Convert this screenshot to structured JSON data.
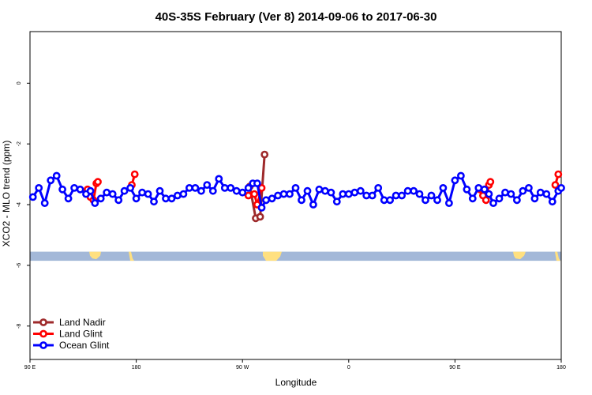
{
  "chart_data": {
    "type": "line",
    "title": "40S-35S February (Ver 8)   2014-09-06 to 2017-06-30",
    "xlabel": "Longitude",
    "ylabel": "XCO2 - MLO trend (ppm)",
    "xlim": [
      90,
      450
    ],
    "ylim": [
      -9.1,
      1.7
    ],
    "x_ticks": [
      {
        "value": 90,
        "label": "90 E"
      },
      {
        "value": 162,
        "label": "180"
      },
      {
        "value": 234,
        "label": "90 W"
      },
      {
        "value": 306,
        "label": "0"
      },
      {
        "value": 378,
        "label": "90 E"
      },
      {
        "value": 450,
        "label": "180"
      }
    ],
    "y_ticks": [
      {
        "value": 0,
        "label": "0"
      },
      {
        "value": -2,
        "label": "-2"
      },
      {
        "value": -4,
        "label": "-4"
      },
      {
        "value": -6,
        "label": "-6"
      },
      {
        "value": -8,
        "label": "-8"
      }
    ],
    "land_band": {
      "y_range": [
        -5.85,
        -5.55
      ],
      "ocean_color": "#a3b8d8",
      "land_color": "#ffe080"
    },
    "legend": {
      "position": "bottom-left"
    },
    "series": [
      {
        "name": "Land Nadir",
        "color": "#9e2a2b",
        "segments": [
          [
            [
              239,
              -3.4
            ],
            [
              243,
              -4.45
            ],
            [
              246,
              -4.4
            ],
            [
              249,
              -2.35
            ]
          ]
        ]
      },
      {
        "name": "Land Glint",
        "color": "#ff0000",
        "segments": [
          [
            [
              129,
              -3.5
            ],
            [
              131,
              -3.75
            ],
            [
              133,
              -3.85
            ],
            [
              135,
              -3.3
            ],
            [
              136,
              -3.25
            ]
          ],
          [
            [
              159,
              -3.35
            ],
            [
              161,
              -3.0
            ]
          ],
          [
            [
              238,
              -3.7
            ],
            [
              242,
              -3.65
            ],
            [
              244,
              -4.0
            ],
            [
              247,
              -3.45
            ]
          ],
          [
            [
              395,
              -3.5
            ],
            [
              397,
              -3.7
            ],
            [
              399,
              -3.85
            ],
            [
              401,
              -3.35
            ],
            [
              402,
              -3.25
            ]
          ],
          [
            [
              446,
              -3.35
            ],
            [
              448,
              -3.0
            ]
          ]
        ]
      },
      {
        "name": "Ocean Glint",
        "color": "#0000ff",
        "segments": [
          [
            [
              92,
              -3.75
            ],
            [
              96,
              -3.45
            ],
            [
              100,
              -3.95
            ],
            [
              104,
              -3.2
            ],
            [
              108,
              -3.05
            ],
            [
              112,
              -3.5
            ],
            [
              116,
              -3.8
            ],
            [
              120,
              -3.45
            ],
            [
              124,
              -3.5
            ],
            [
              128,
              -3.65
            ],
            [
              131,
              -3.55
            ],
            [
              134,
              -3.95
            ],
            [
              138,
              -3.8
            ],
            [
              142,
              -3.6
            ],
            [
              146,
              -3.65
            ],
            [
              150,
              -3.85
            ],
            [
              154,
              -3.55
            ],
            [
              158,
              -3.45
            ],
            [
              162,
              -3.8
            ],
            [
              166,
              -3.6
            ],
            [
              170,
              -3.65
            ],
            [
              174,
              -3.9
            ],
            [
              178,
              -3.55
            ],
            [
              182,
              -3.8
            ],
            [
              186,
              -3.8
            ],
            [
              190,
              -3.7
            ],
            [
              194,
              -3.65
            ],
            [
              198,
              -3.45
            ],
            [
              202,
              -3.45
            ],
            [
              206,
              -3.55
            ],
            [
              210,
              -3.35
            ],
            [
              214,
              -3.55
            ],
            [
              218,
              -3.15
            ],
            [
              222,
              -3.45
            ],
            [
              226,
              -3.45
            ],
            [
              230,
              -3.55
            ],
            [
              234,
              -3.6
            ],
            [
              238,
              -3.45
            ],
            [
              241,
              -3.3
            ],
            [
              244,
              -3.3
            ],
            [
              247,
              -4.1
            ],
            [
              250,
              -3.85
            ],
            [
              254,
              -3.8
            ],
            [
              258,
              -3.7
            ],
            [
              262,
              -3.65
            ],
            [
              266,
              -3.65
            ],
            [
              270,
              -3.45
            ],
            [
              274,
              -3.85
            ],
            [
              278,
              -3.55
            ],
            [
              282,
              -4.0
            ],
            [
              286,
              -3.5
            ],
            [
              290,
              -3.55
            ],
            [
              294,
              -3.6
            ],
            [
              298,
              -3.9
            ],
            [
              302,
              -3.65
            ],
            [
              306,
              -3.65
            ],
            [
              310,
              -3.6
            ],
            [
              314,
              -3.55
            ],
            [
              318,
              -3.7
            ],
            [
              322,
              -3.7
            ],
            [
              326,
              -3.45
            ],
            [
              330,
              -3.85
            ],
            [
              334,
              -3.85
            ],
            [
              338,
              -3.7
            ],
            [
              342,
              -3.7
            ],
            [
              346,
              -3.55
            ],
            [
              350,
              -3.55
            ],
            [
              354,
              -3.65
            ],
            [
              358,
              -3.85
            ],
            [
              362,
              -3.7
            ],
            [
              366,
              -3.85
            ],
            [
              370,
              -3.45
            ],
            [
              374,
              -3.95
            ],
            [
              378,
              -3.2
            ],
            [
              382,
              -3.05
            ],
            [
              386,
              -3.5
            ],
            [
              390,
              -3.8
            ],
            [
              394,
              -3.45
            ],
            [
              398,
              -3.5
            ],
            [
              401,
              -3.65
            ],
            [
              404,
              -3.95
            ],
            [
              408,
              -3.8
            ],
            [
              412,
              -3.6
            ],
            [
              416,
              -3.65
            ],
            [
              420,
              -3.85
            ],
            [
              424,
              -3.55
            ],
            [
              428,
              -3.45
            ],
            [
              432,
              -3.8
            ],
            [
              436,
              -3.6
            ],
            [
              440,
              -3.65
            ],
            [
              444,
              -3.9
            ],
            [
              448,
              -3.55
            ],
            [
              450,
              -3.45
            ]
          ]
        ]
      }
    ]
  }
}
